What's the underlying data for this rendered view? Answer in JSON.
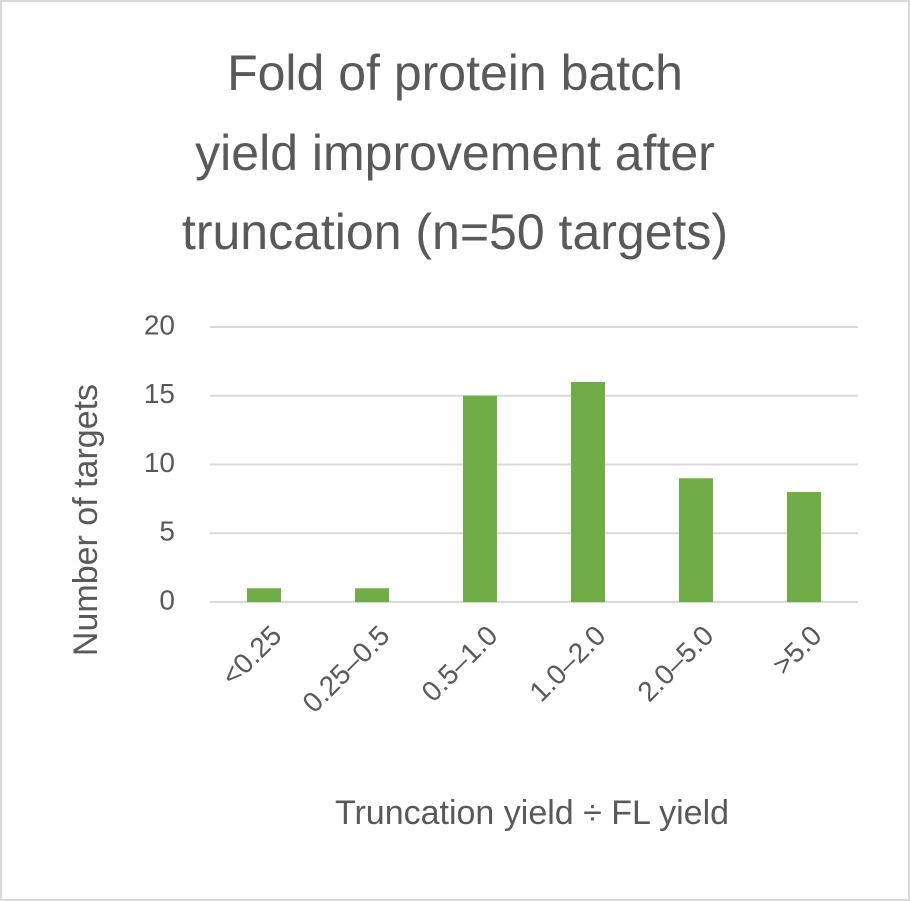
{
  "chart_data": {
    "type": "bar",
    "title": [
      "Fold of protein batch",
      "yield improvement after",
      "truncation (n=50 targets)"
    ],
    "x_label": "Truncation yield ÷ FL yield",
    "y_label": "Number of targets",
    "categories": [
      "<0.25",
      "0.25–0.5",
      "0.5–1.0",
      "1.0–2.0",
      "2.0–5.0",
      ">5.0"
    ],
    "values": [
      1,
      1,
      15,
      16,
      9,
      8
    ],
    "color": "#70ad47",
    "ylim": [
      0,
      20
    ],
    "yticks": [
      0,
      5,
      10,
      15,
      20
    ],
    "grid": true
  }
}
